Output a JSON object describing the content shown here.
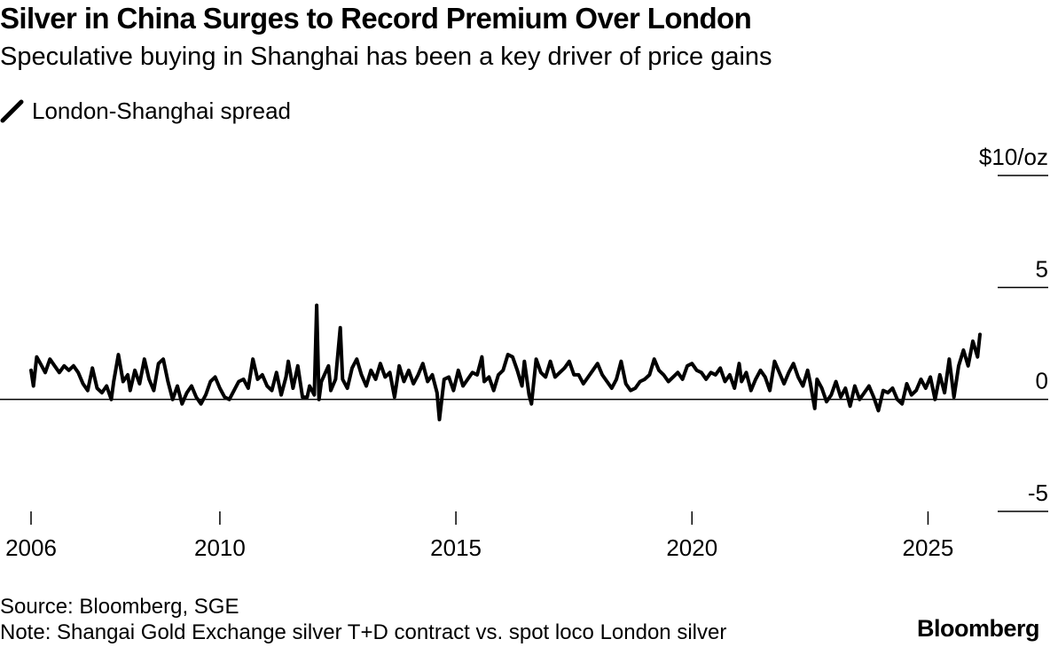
{
  "header": {
    "title": "Silver in China Surges to Record Premium Over London",
    "subtitle": "Speculative buying in Shanghai has been a key driver of price gains"
  },
  "legend": {
    "label": "London-Shanghai spread",
    "icon": "line-swatch-icon"
  },
  "footer": {
    "source": "Source: Bloomberg, SGE",
    "note": "Note: Shangai Gold Exchange silver T+D contract vs. spot loco London silver",
    "brand": "Bloomberg"
  },
  "colors": {
    "line": "#000000",
    "axis": "#000000",
    "background": "#ffffff"
  },
  "chart_data": {
    "type": "line",
    "title": "Silver in China Surges to Record Premium Over London",
    "subtitle": "Speculative buying in Shanghai has been a key driver of price gains",
    "xlabel": "",
    "ylabel": "$/oz",
    "xlim": [
      2006.0,
      2026.1
    ],
    "ylim": [
      -5,
      10
    ],
    "x_ticks": [
      2006,
      2010,
      2015,
      2020,
      2025
    ],
    "x_tick_labels": [
      "2006",
      "2010",
      "2015",
      "2020",
      "2025"
    ],
    "y_ticks": [
      10,
      5,
      0,
      -5
    ],
    "y_tick_labels": [
      "$10/oz",
      "5",
      "0",
      "-5"
    ],
    "zero_line": true,
    "grid": false,
    "legend_position": "top-left",
    "series": [
      {
        "name": "London-Shanghai spread",
        "points": [
          [
            2006.0,
            1.3
          ],
          [
            2006.05,
            0.6
          ],
          [
            2006.12,
            1.9
          ],
          [
            2006.2,
            1.6
          ],
          [
            2006.3,
            1.2
          ],
          [
            2006.4,
            1.8
          ],
          [
            2006.5,
            1.5
          ],
          [
            2006.6,
            1.2
          ],
          [
            2006.7,
            1.5
          ],
          [
            2006.8,
            1.3
          ],
          [
            2006.9,
            1.5
          ],
          [
            2007.0,
            1.2
          ],
          [
            2007.1,
            0.7
          ],
          [
            2007.2,
            0.4
          ],
          [
            2007.3,
            1.4
          ],
          [
            2007.4,
            0.5
          ],
          [
            2007.5,
            0.3
          ],
          [
            2007.6,
            0.6
          ],
          [
            2007.7,
            0.0
          ],
          [
            2007.75,
            0.8
          ],
          [
            2007.85,
            2.0
          ],
          [
            2007.95,
            0.8
          ],
          [
            2008.05,
            1.1
          ],
          [
            2008.1,
            0.4
          ],
          [
            2008.2,
            1.3
          ],
          [
            2008.3,
            0.7
          ],
          [
            2008.4,
            1.8
          ],
          [
            2008.5,
            0.9
          ],
          [
            2008.6,
            0.4
          ],
          [
            2008.7,
            1.6
          ],
          [
            2008.8,
            1.8
          ],
          [
            2008.9,
            0.8
          ],
          [
            2009.0,
            0.0
          ],
          [
            2009.1,
            0.6
          ],
          [
            2009.2,
            -0.2
          ],
          [
            2009.3,
            0.3
          ],
          [
            2009.4,
            0.6
          ],
          [
            2009.5,
            0.1
          ],
          [
            2009.6,
            -0.2
          ],
          [
            2009.7,
            0.2
          ],
          [
            2009.8,
            0.8
          ],
          [
            2009.9,
            1.0
          ],
          [
            2010.0,
            0.5
          ],
          [
            2010.1,
            0.1
          ],
          [
            2010.2,
            0.0
          ],
          [
            2010.3,
            0.4
          ],
          [
            2010.4,
            0.8
          ],
          [
            2010.5,
            0.9
          ],
          [
            2010.6,
            0.5
          ],
          [
            2010.7,
            1.8
          ],
          [
            2010.8,
            0.9
          ],
          [
            2010.9,
            1.1
          ],
          [
            2011.0,
            0.6
          ],
          [
            2011.1,
            0.4
          ],
          [
            2011.2,
            1.2
          ],
          [
            2011.3,
            0.2
          ],
          [
            2011.4,
            1.0
          ],
          [
            2011.45,
            1.7
          ],
          [
            2011.55,
            0.5
          ],
          [
            2011.65,
            1.5
          ],
          [
            2011.75,
            0.1
          ],
          [
            2011.85,
            0.1
          ],
          [
            2011.9,
            0.6
          ],
          [
            2012.0,
            0.2
          ],
          [
            2012.05,
            4.2
          ],
          [
            2012.1,
            0.0
          ],
          [
            2012.15,
            0.8
          ],
          [
            2012.3,
            1.5
          ],
          [
            2012.35,
            0.4
          ],
          [
            2012.45,
            0.9
          ],
          [
            2012.55,
            3.2
          ],
          [
            2012.6,
            0.9
          ],
          [
            2012.7,
            0.5
          ],
          [
            2012.8,
            1.4
          ],
          [
            2012.9,
            1.8
          ],
          [
            2013.0,
            1.1
          ],
          [
            2013.1,
            0.6
          ],
          [
            2013.2,
            1.3
          ],
          [
            2013.3,
            0.9
          ],
          [
            2013.4,
            1.6
          ],
          [
            2013.5,
            1.0
          ],
          [
            2013.6,
            1.2
          ],
          [
            2013.7,
            0.1
          ],
          [
            2013.8,
            1.5
          ],
          [
            2013.9,
            0.8
          ],
          [
            2014.0,
            1.3
          ],
          [
            2014.1,
            0.7
          ],
          [
            2014.2,
            1.1
          ],
          [
            2014.3,
            1.6
          ],
          [
            2014.4,
            0.8
          ],
          [
            2014.5,
            1.1
          ],
          [
            2014.6,
            0.3
          ],
          [
            2014.65,
            -0.9
          ],
          [
            2014.75,
            0.9
          ],
          [
            2014.85,
            1.0
          ],
          [
            2014.95,
            0.4
          ],
          [
            2015.05,
            1.3
          ],
          [
            2015.15,
            0.6
          ],
          [
            2015.25,
            0.9
          ],
          [
            2015.35,
            1.2
          ],
          [
            2015.45,
            1.1
          ],
          [
            2015.55,
            1.9
          ],
          [
            2015.6,
            0.8
          ],
          [
            2015.7,
            1.0
          ],
          [
            2015.8,
            0.4
          ],
          [
            2015.9,
            1.1
          ],
          [
            2016.0,
            1.3
          ],
          [
            2016.1,
            2.0
          ],
          [
            2016.2,
            1.9
          ],
          [
            2016.3,
            1.3
          ],
          [
            2016.4,
            0.6
          ],
          [
            2016.45,
            1.7
          ],
          [
            2016.55,
            0.2
          ],
          [
            2016.6,
            -0.2
          ],
          [
            2016.7,
            1.8
          ],
          [
            2016.8,
            1.2
          ],
          [
            2016.9,
            1.0
          ],
          [
            2017.0,
            1.7
          ],
          [
            2017.1,
            1.0
          ],
          [
            2017.2,
            1.2
          ],
          [
            2017.3,
            1.4
          ],
          [
            2017.4,
            1.7
          ],
          [
            2017.5,
            1.1
          ],
          [
            2017.6,
            1.1
          ],
          [
            2017.7,
            0.7
          ],
          [
            2017.8,
            1.0
          ],
          [
            2017.9,
            1.3
          ],
          [
            2018.0,
            1.6
          ],
          [
            2018.1,
            1.1
          ],
          [
            2018.2,
            0.8
          ],
          [
            2018.3,
            0.5
          ],
          [
            2018.4,
            0.9
          ],
          [
            2018.5,
            1.7
          ],
          [
            2018.6,
            0.7
          ],
          [
            2018.7,
            0.4
          ],
          [
            2018.8,
            0.5
          ],
          [
            2018.9,
            0.8
          ],
          [
            2019.0,
            0.9
          ],
          [
            2019.1,
            1.1
          ],
          [
            2019.2,
            1.8
          ],
          [
            2019.3,
            1.3
          ],
          [
            2019.4,
            1.1
          ],
          [
            2019.5,
            0.8
          ],
          [
            2019.6,
            1.0
          ],
          [
            2019.7,
            1.2
          ],
          [
            2019.8,
            0.9
          ],
          [
            2019.9,
            1.5
          ],
          [
            2020.0,
            1.6
          ],
          [
            2020.1,
            1.3
          ],
          [
            2020.2,
            1.2
          ],
          [
            2020.3,
            0.9
          ],
          [
            2020.4,
            1.2
          ],
          [
            2020.5,
            1.1
          ],
          [
            2020.6,
            1.4
          ],
          [
            2020.7,
            0.8
          ],
          [
            2020.8,
            1.1
          ],
          [
            2020.9,
            0.5
          ],
          [
            2021.0,
            1.6
          ],
          [
            2021.05,
            0.8
          ],
          [
            2021.15,
            1.2
          ],
          [
            2021.25,
            0.4
          ],
          [
            2021.35,
            0.9
          ],
          [
            2021.45,
            1.3
          ],
          [
            2021.55,
            1.0
          ],
          [
            2021.65,
            0.4
          ],
          [
            2021.75,
            1.7
          ],
          [
            2021.85,
            1.2
          ],
          [
            2021.95,
            0.7
          ],
          [
            2022.05,
            1.2
          ],
          [
            2022.15,
            1.6
          ],
          [
            2022.25,
            1.0
          ],
          [
            2022.35,
            0.6
          ],
          [
            2022.45,
            1.3
          ],
          [
            2022.5,
            0.8
          ],
          [
            2022.6,
            -0.4
          ],
          [
            2022.65,
            0.9
          ],
          [
            2022.75,
            0.5
          ],
          [
            2022.85,
            -0.1
          ],
          [
            2022.95,
            0.2
          ],
          [
            2023.05,
            0.8
          ],
          [
            2023.15,
            0.1
          ],
          [
            2023.25,
            0.5
          ],
          [
            2023.35,
            -0.3
          ],
          [
            2023.45,
            0.6
          ],
          [
            2023.55,
            0.0
          ],
          [
            2023.65,
            0.3
          ],
          [
            2023.75,
            0.6
          ],
          [
            2023.85,
            0.1
          ],
          [
            2023.95,
            -0.5
          ],
          [
            2024.05,
            0.4
          ],
          [
            2024.15,
            0.3
          ],
          [
            2024.25,
            0.5
          ],
          [
            2024.35,
            0.0
          ],
          [
            2024.45,
            -0.2
          ],
          [
            2024.55,
            0.7
          ],
          [
            2024.65,
            0.2
          ],
          [
            2024.75,
            0.4
          ],
          [
            2024.85,
            0.9
          ],
          [
            2024.95,
            0.5
          ],
          [
            2025.05,
            1.0
          ],
          [
            2025.15,
            0.0
          ],
          [
            2025.25,
            1.1
          ],
          [
            2025.35,
            0.3
          ],
          [
            2025.45,
            1.8
          ],
          [
            2025.55,
            0.1
          ],
          [
            2025.65,
            1.5
          ],
          [
            2025.75,
            2.2
          ],
          [
            2025.85,
            1.5
          ],
          [
            2025.95,
            2.6
          ],
          [
            2026.05,
            1.9
          ],
          [
            2026.1,
            2.9
          ]
        ]
      }
    ]
  }
}
